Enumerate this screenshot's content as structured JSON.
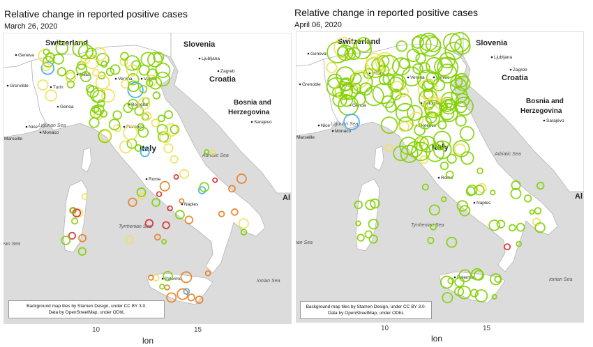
{
  "panels": [
    {
      "title": "Relative change in reported positive cases",
      "date": "March 26, 2020",
      "xlabel": "lon",
      "ticks": [
        "10",
        "15"
      ],
      "attribution": [
        "Background map tiles by Stamen Design, under CC BY 3.0.",
        "Data by OpenStreetMap, under ODbL"
      ],
      "countries": [
        "Switzerland",
        "Slovenia",
        "Croatia",
        "Bosnia and",
        "Herzegovina",
        "Italy",
        "Al"
      ],
      "seas": [
        "Ligurian Sea",
        "Adriatic Sea",
        "Tyrrhenian Sea",
        "Ionian Sea",
        "ean Sea"
      ],
      "cities": [
        "Geneva",
        "Grenoble",
        "Milan",
        "Turin",
        "Genoa",
        "Verona",
        "Venice",
        "Bologna",
        "Florence",
        "Nice",
        "Monaco",
        "Marseille",
        "Ljubljana",
        "Zagreb",
        "Sarajevo",
        "Rome",
        "Naples",
        "Palermo"
      ]
    },
    {
      "title": "Relative change in reported positive cases",
      "date": "April 06, 2020",
      "xlabel": "lon",
      "ticks": [
        "10",
        "15"
      ],
      "attribution": [
        "Background map tiles by Stamen Design, under CC BY 3.0.",
        "Data by OpenStreetMap, under ODbL"
      ],
      "countries": [
        "Switzerland",
        "Slovenia",
        "Croatia",
        "Bosnia and",
        "Herzegovina",
        "Italy",
        "Al"
      ],
      "seas": [
        "Ligurian Sea",
        "Adriatic Sea",
        "Tyrrhenian Sea",
        "Ionian Sea",
        "ean Sea"
      ],
      "cities": [
        "Geneva",
        "Grenoble",
        "Milan",
        "Turin",
        "Genoa",
        "Verona",
        "Venice",
        "Bologna",
        "Florence",
        "Nice",
        "Monaco",
        "Marseille",
        "Ljubljana",
        "Zagreb",
        "Sarajevo",
        "Rome",
        "Naples",
        "Palermo"
      ]
    }
  ],
  "colors": {
    "water": "#dcdcdc",
    "land": "#ffffff",
    "border": "#b5b5b5",
    "scale": [
      "#d62728",
      "#e67e22",
      "#f1e05a",
      "#7fd000",
      "#3fa9f5"
    ]
  }
}
